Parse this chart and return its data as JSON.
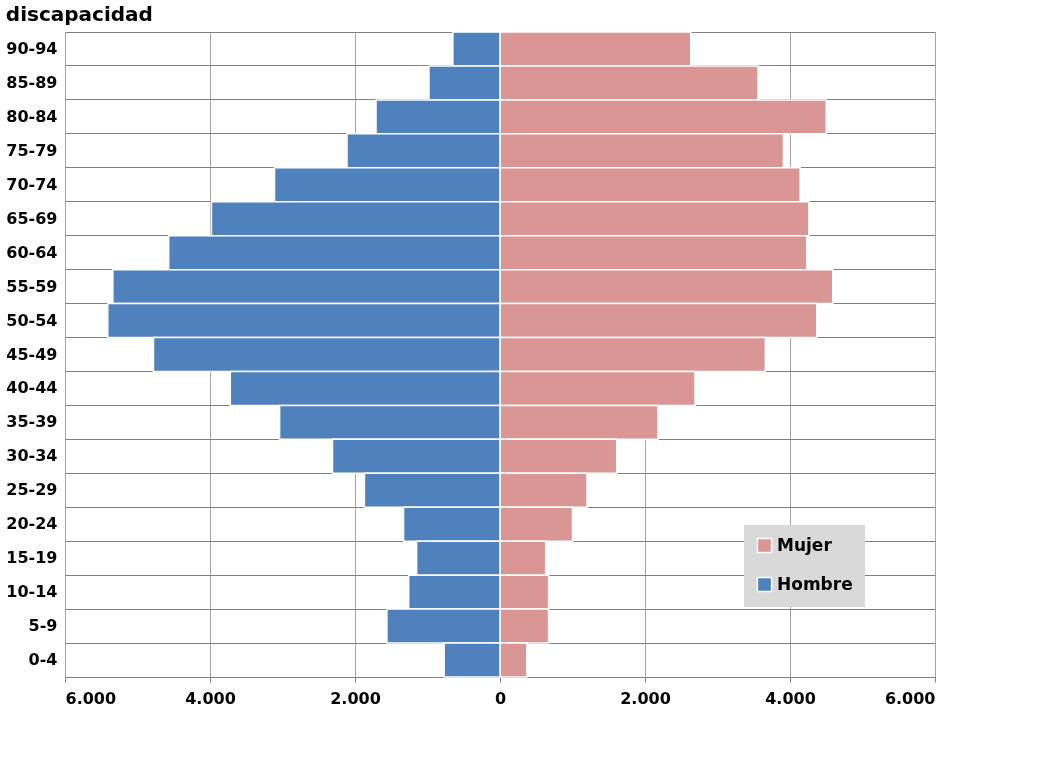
{
  "chart_data": {
    "type": "bar",
    "orientation": "horizontal",
    "title": "discapacidad",
    "categories": [
      "90-94",
      "85-89",
      "80-84",
      "75-79",
      "70-74",
      "65-69",
      "60-64",
      "55-59",
      "50-54",
      "45-49",
      "40-44",
      "35-39",
      "30-34",
      "25-29",
      "20-24",
      "15-19",
      "10-14",
      "5-9",
      "0-4"
    ],
    "series": [
      {
        "name": "Mujer",
        "color": "#d99694",
        "values": [
          2630,
          3560,
          4500,
          3910,
          4140,
          4260,
          4230,
          4590,
          4370,
          3660,
          2690,
          2180,
          1610,
          1200,
          1000,
          630,
          670,
          670,
          370
        ]
      },
      {
        "name": "Hombre",
        "color": "#4f81bd",
        "values": [
          -650,
          -980,
          -1710,
          -2110,
          -3110,
          -3980,
          -4570,
          -5340,
          -5410,
          -4780,
          -3720,
          -3040,
          -2310,
          -1870,
          -1330,
          -1150,
          -1260,
          -1560,
          -770
        ]
      }
    ],
    "xlim": [
      -6000,
      6000
    ],
    "xticks": [
      {
        "value": -6000,
        "label": "6.000"
      },
      {
        "value": -4000,
        "label": "4.000"
      },
      {
        "value": -2000,
        "label": "2.000"
      },
      0,
      {
        "value": 2000,
        "label": "2.000"
      },
      {
        "value": 4000,
        "label": "4.000"
      },
      {
        "value": 6000,
        "label": "6.000"
      }
    ],
    "grid": true,
    "stacked": true,
    "legend": "bottom right"
  }
}
